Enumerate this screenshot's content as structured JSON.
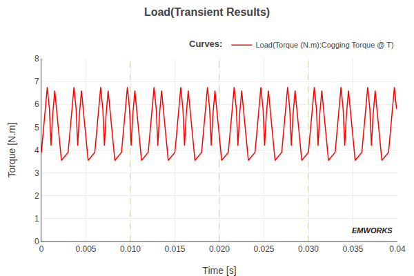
{
  "chart_data": {
    "type": "line",
    "title": "Load(Transient Results)",
    "x_label": "Time [s]",
    "y_label": "Torque [N.m]",
    "legend_title": "Curves:",
    "legend": "upper right",
    "grid": true,
    "annotations": [
      "EMWORKS"
    ],
    "xlim": [
      0,
      0.04
    ],
    "ylim": [
      0,
      8
    ],
    "xticks": [
      0,
      0.005,
      {
        "value": 0.01,
        "label": "0.010"
      },
      0.015,
      {
        "value": 0.02,
        "label": "0.020"
      },
      0.025,
      {
        "value": 0.03,
        "label": "0.030"
      },
      0.035,
      0.04
    ],
    "yticks": [
      0,
      1,
      2,
      3,
      4,
      5,
      6,
      7,
      8
    ],
    "x": [
      0,
      0.00066,
      0.0009,
      0.00108,
      0.00126,
      0.0015,
      0.00225,
      0.003,
      0.003,
      0.00366,
      0.0039,
      0.00408,
      0.00426,
      0.0045,
      0.00525,
      0.006,
      0.006,
      0.00666,
      0.0069,
      0.00708,
      0.00726,
      0.0075,
      0.00825,
      0.009,
      0.009,
      0.00966,
      0.0099,
      0.01008,
      0.01026,
      0.0105,
      0.01125,
      0.012,
      0.012,
      0.01266,
      0.0129,
      0.01308,
      0.01326,
      0.0135,
      0.01425,
      0.015,
      0.015,
      0.01566,
      0.0159,
      0.01608,
      0.01626,
      0.0165,
      0.01725,
      0.018,
      0.018,
      0.01866,
      0.0189,
      0.01908,
      0.01926,
      0.0195,
      0.02025,
      0.021,
      0.021,
      0.02166,
      0.0219,
      0.02208,
      0.02226,
      0.0225,
      0.02325,
      0.024,
      0.024,
      0.02466,
      0.0249,
      0.02508,
      0.02526,
      0.0255,
      0.02625,
      0.027,
      0.027,
      0.02766,
      0.0279,
      0.02808,
      0.02826,
      0.0285,
      0.02925,
      0.03,
      0.03,
      0.03066,
      0.0309,
      0.03108,
      0.03126,
      0.0315,
      0.03225,
      0.033,
      0.033,
      0.03366,
      0.0339,
      0.03408,
      0.03426,
      0.0345,
      0.03525,
      0.036,
      0.036,
      0.03666,
      0.0369,
      0.03708,
      0.03726,
      0.0375,
      0.03825,
      0.039,
      0.039,
      0.03966,
      0.0399
    ],
    "series": [
      {
        "name": "Load(Torque (N.m):Cogging Torque @ T)",
        "color": "#FF0000",
        "values": [
          3.9,
          6.75,
          5.8,
          4.2,
          5.5,
          6.6,
          3.55,
          3.9,
          3.9,
          6.75,
          5.8,
          4.2,
          5.5,
          6.6,
          3.55,
          3.9,
          3.9,
          6.75,
          5.8,
          4.2,
          5.5,
          6.6,
          3.55,
          3.9,
          3.9,
          6.75,
          5.8,
          4.2,
          5.5,
          6.6,
          3.55,
          3.9,
          3.9,
          6.75,
          5.8,
          4.2,
          5.5,
          6.6,
          3.55,
          3.9,
          3.9,
          6.75,
          5.8,
          4.2,
          5.5,
          6.6,
          3.55,
          3.9,
          3.9,
          6.75,
          5.8,
          4.2,
          5.5,
          6.6,
          3.55,
          3.9,
          3.9,
          6.75,
          5.8,
          4.2,
          5.5,
          6.6,
          3.55,
          3.9,
          3.9,
          6.75,
          5.8,
          4.2,
          5.5,
          6.6,
          3.55,
          3.9,
          3.9,
          6.75,
          5.8,
          4.2,
          5.5,
          6.6,
          3.55,
          3.9,
          3.9,
          6.75,
          5.8,
          4.2,
          5.5,
          6.6,
          3.55,
          3.9,
          3.9,
          6.75,
          5.8,
          4.2,
          5.5,
          6.6,
          3.55,
          3.9,
          3.9,
          6.75,
          5.8,
          4.2,
          5.5,
          6.6,
          3.55,
          3.9,
          3.9,
          6.75,
          5.8
        ]
      }
    ]
  }
}
